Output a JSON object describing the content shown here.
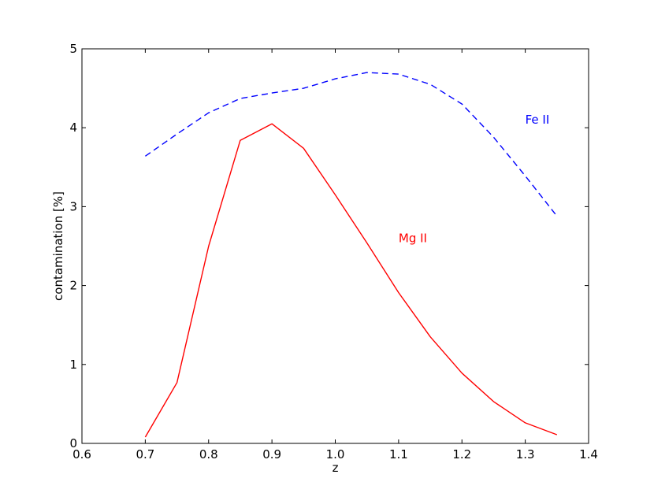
{
  "chart_data": {
    "type": "line",
    "xlabel": "z",
    "ylabel": "contamination [%]",
    "xlim": [
      0.6,
      1.4
    ],
    "ylim": [
      0,
      5
    ],
    "xticks": [
      "0.6",
      "0.7",
      "0.8",
      "0.9",
      "1.0",
      "1.1",
      "1.2",
      "1.3",
      "1.4"
    ],
    "yticks": [
      "0",
      "1",
      "2",
      "3",
      "4",
      "5"
    ],
    "grid": false,
    "series": [
      {
        "name": "Fe II",
        "color": "#0000ff",
        "style": "dashed",
        "x": [
          0.7,
          0.75,
          0.8,
          0.85,
          0.9,
          0.95,
          1.0,
          1.05,
          1.1,
          1.15,
          1.2,
          1.25,
          1.3,
          1.35
        ],
        "y": [
          3.64,
          3.92,
          4.19,
          4.37,
          4.44,
          4.5,
          4.62,
          4.7,
          4.68,
          4.55,
          4.3,
          3.88,
          3.39,
          2.88
        ]
      },
      {
        "name": "Mg II",
        "color": "#ff0000",
        "style": "solid",
        "x": [
          0.7,
          0.75,
          0.8,
          0.85,
          0.9,
          0.95,
          1.0,
          1.05,
          1.1,
          1.15,
          1.2,
          1.25,
          1.3,
          1.35
        ],
        "y": [
          0.08,
          0.77,
          2.5,
          3.84,
          4.05,
          3.74,
          3.15,
          2.54,
          1.91,
          1.35,
          0.89,
          0.53,
          0.26,
          0.11
        ]
      }
    ],
    "annotations": [
      {
        "text": "Fe II",
        "x": 1.3,
        "y": 4.05,
        "color": "#0000ff"
      },
      {
        "text": "Mg II",
        "x": 1.1,
        "y": 2.55,
        "color": "#ff0000"
      }
    ]
  }
}
